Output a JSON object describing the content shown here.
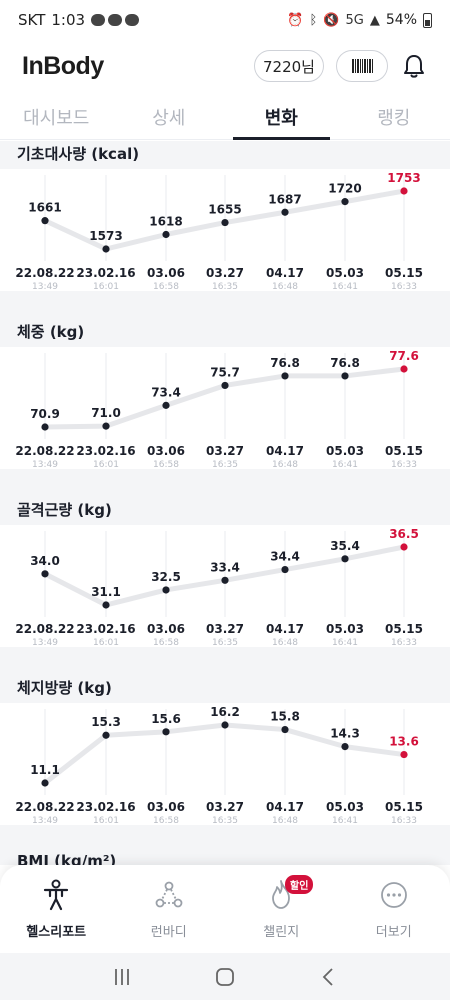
{
  "status_bar": {
    "carrier": "SKT",
    "time": "1:03",
    "network": "5G",
    "battery": "54%"
  },
  "header": {
    "logo": "InBody",
    "user_id": "7220님",
    "barcode_icon": "barcode-icon",
    "bell_icon": "bell-icon"
  },
  "tabs": [
    {
      "label": "대시보드",
      "active": false
    },
    {
      "label": "상세",
      "active": false
    },
    {
      "label": "변화",
      "active": true
    },
    {
      "label": "랭킹",
      "active": false
    }
  ],
  "x_axis": {
    "dates": [
      "22.08.22",
      "23.02.16",
      "03.06",
      "03.27",
      "04.17",
      "05.03",
      "05.15"
    ],
    "times": [
      "13:49",
      "16:01",
      "16:58",
      "16:35",
      "16:48",
      "16:41",
      "16:33"
    ]
  },
  "chart_data": [
    {
      "type": "line",
      "title": "기초대사량 (kcal)",
      "x": [
        "22.08.22",
        "23.02.16",
        "03.06",
        "03.27",
        "04.17",
        "05.03",
        "05.15"
      ],
      "values": [
        1661,
        1573,
        1618,
        1655,
        1687,
        1720,
        1753
      ],
      "highlight_last": true
    },
    {
      "type": "line",
      "title": "체중 (kg)",
      "x": [
        "22.08.22",
        "23.02.16",
        "03.06",
        "03.27",
        "04.17",
        "05.03",
        "05.15"
      ],
      "values": [
        70.9,
        71.0,
        73.4,
        75.7,
        76.8,
        76.8,
        77.6
      ],
      "highlight_last": true
    },
    {
      "type": "line",
      "title": "골격근량 (kg)",
      "x": [
        "22.08.22",
        "23.02.16",
        "03.06",
        "03.27",
        "04.17",
        "05.03",
        "05.15"
      ],
      "values": [
        34.0,
        31.1,
        32.5,
        33.4,
        34.4,
        35.4,
        36.5
      ],
      "highlight_last": true
    },
    {
      "type": "line",
      "title": "체지방량 (kg)",
      "x": [
        "22.08.22",
        "23.02.16",
        "03.06",
        "03.27",
        "04.17",
        "05.03",
        "05.15"
      ],
      "values": [
        11.1,
        15.3,
        15.6,
        16.2,
        15.8,
        14.3,
        13.6
      ],
      "highlight_last": true
    }
  ],
  "value_labels": [
    [
      "1661",
      "1573",
      "1618",
      "1655",
      "1687",
      "1720",
      "1753"
    ],
    [
      "70.9",
      "71.0",
      "73.4",
      "75.7",
      "76.8",
      "76.8",
      "77.6"
    ],
    [
      "34.0",
      "31.1",
      "32.5",
      "33.4",
      "34.4",
      "35.4",
      "36.5"
    ],
    [
      "11.1",
      "15.3",
      "15.6",
      "16.2",
      "15.8",
      "14.3",
      "13.6"
    ]
  ],
  "next_section_title": "BMI (kg/m²)",
  "colors": {
    "point": "#1b1f2a",
    "highlight": "#d3113b",
    "line": "#e6e7ea",
    "grid": "#e9ebef"
  },
  "bottom_nav": [
    {
      "label": "헬스리포트",
      "icon": "health-report-icon",
      "active": true
    },
    {
      "label": "런바디",
      "icon": "runbody-icon",
      "active": false
    },
    {
      "label": "챌린지",
      "icon": "challenge-flame-icon",
      "active": false,
      "badge": "할인"
    },
    {
      "label": "더보기",
      "icon": "more-icon",
      "active": false
    }
  ]
}
